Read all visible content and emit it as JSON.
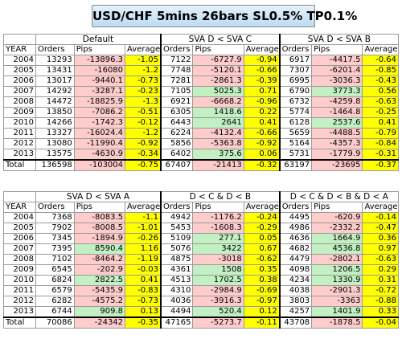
{
  "title": "USD/CHF 5mins 26bars SL0.5% TP0.1%",
  "year_header": "YEAR",
  "sub_headers": [
    "Orders",
    "Pips",
    "Average"
  ],
  "years": [
    "2004",
    "2005",
    "2006",
    "2007",
    "2008",
    "2009",
    "2010",
    "2011",
    "2012",
    "2013",
    "Total"
  ],
  "top_groups": [
    {
      "name": "Default",
      "rows": [
        [
          "13293",
          "-13896.3",
          "-1.05"
        ],
        [
          "13431",
          "-16080",
          "-1.2"
        ],
        [
          "13017",
          "-9440.1",
          "-0.73"
        ],
        [
          "14292",
          "-3287.1",
          "-0.23"
        ],
        [
          "14472",
          "-18825.9",
          "-1.3"
        ],
        [
          "13850",
          "-7086.2",
          "-0.51"
        ],
        [
          "14266",
          "-1742.3",
          "-0.12"
        ],
        [
          "13327",
          "-16024.4",
          "-1.2"
        ],
        [
          "13080",
          "-11990.4",
          "-0.92"
        ],
        [
          "13575",
          "-4630.9",
          "-0.34"
        ],
        [
          "136598",
          "-103004",
          "-0.75"
        ]
      ]
    },
    {
      "name": "SVA D < SVA C",
      "rows": [
        [
          "7122",
          "-6727.9",
          "-0.94"
        ],
        [
          "7748",
          "-5120.1",
          "-0.66"
        ],
        [
          "7281",
          "-2861.3",
          "-0.39"
        ],
        [
          "7105",
          "5025.3",
          "0.71"
        ],
        [
          "6921",
          "-6668.2",
          "-0.96"
        ],
        [
          "6305",
          "1418.6",
          "0.22"
        ],
        [
          "6443",
          "2641",
          "0.41"
        ],
        [
          "6224",
          "-4132.4",
          "-0.66"
        ],
        [
          "5856",
          "-5363.8",
          "-0.92"
        ],
        [
          "6402",
          "375.6",
          "0.06"
        ],
        [
          "67407",
          "-21413",
          "-0.32"
        ]
      ]
    },
    {
      "name": "SVA D < SVA B",
      "rows": [
        [
          "6917",
          "-4417.5",
          "-0.64"
        ],
        [
          "7307",
          "-6201.4",
          "-0.85"
        ],
        [
          "6995",
          "-3036.3",
          "-0.43"
        ],
        [
          "6790",
          "3773.3",
          "0.56"
        ],
        [
          "6732",
          "-4259.8",
          "-0.63"
        ],
        [
          "5774",
          "-1464.8",
          "-0.25"
        ],
        [
          "6128",
          "2537.6",
          "0.41"
        ],
        [
          "5659",
          "-4488.5",
          "-0.79"
        ],
        [
          "5164",
          "-4357.3",
          "-0.84"
        ],
        [
          "5731",
          "-1779.9",
          "-0.31"
        ],
        [
          "63197",
          "-23695",
          "-0.37"
        ]
      ]
    }
  ],
  "bottom_groups": [
    {
      "name": "SVA D < SVA A",
      "rows": [
        [
          "7368",
          "-8083.5",
          "-1.1"
        ],
        [
          "7902",
          "-8008.5",
          "-1.01"
        ],
        [
          "7345",
          "-1894.9",
          "-0.26"
        ],
        [
          "7395",
          "8590.4",
          "1.16"
        ],
        [
          "7102",
          "-8464.2",
          "-1.19"
        ],
        [
          "6545",
          "-202.9",
          "-0.03"
        ],
        [
          "6824",
          "2822.5",
          "0.41"
        ],
        [
          "6579",
          "-5435.9",
          "-0.83"
        ],
        [
          "6282",
          "-4575.2",
          "-0.73"
        ],
        [
          "6744",
          "909.8",
          "0.13"
        ],
        [
          "70086",
          "-24342",
          "-0.35"
        ]
      ]
    },
    {
      "name": "D < C & D < B",
      "rows": [
        [
          "4942",
          "-1176.2",
          "-0.24"
        ],
        [
          "5453",
          "-1608.3",
          "-0.29"
        ],
        [
          "5109",
          "277.1",
          "0.05"
        ],
        [
          "5076",
          "3422",
          "0.67"
        ],
        [
          "4875",
          "-3018",
          "-0.62"
        ],
        [
          "4361",
          "1508",
          "0.35"
        ],
        [
          "4513",
          "1702.5",
          "0.38"
        ],
        [
          "4310",
          "-2984.9",
          "-0.69"
        ],
        [
          "4036",
          "-3916.3",
          "-0.97"
        ],
        [
          "4494",
          "520.4",
          "0.12"
        ],
        [
          "47165",
          "-5273.7",
          "-0.11"
        ]
      ]
    },
    {
      "name": "D < C & D < B & D < A",
      "rows": [
        [
          "4495",
          "-620.9",
          "-0.14"
        ],
        [
          "4986",
          "-2332.2",
          "-0.47"
        ],
        [
          "4636",
          "1664.9",
          "0.36"
        ],
        [
          "4682",
          "4536.8",
          "0.97"
        ],
        [
          "4479",
          "-2802.1",
          "-0.63"
        ],
        [
          "4098",
          "1206.5",
          "0.29"
        ],
        [
          "4234",
          "1330.9",
          "0.31"
        ],
        [
          "4038",
          "-2901.3",
          "-0.72"
        ],
        [
          "3803",
          "-3363",
          "-0.88"
        ],
        [
          "4257",
          "1401.9",
          "0.33"
        ],
        [
          "43708",
          "-1878.5",
          "-0.04"
        ]
      ]
    }
  ],
  "colors": {
    "negative_pips": "#ffcccc",
    "positive_pips": "#c2f0c2",
    "average": "#ffff00",
    "title_bg": "#bcdcf2"
  }
}
